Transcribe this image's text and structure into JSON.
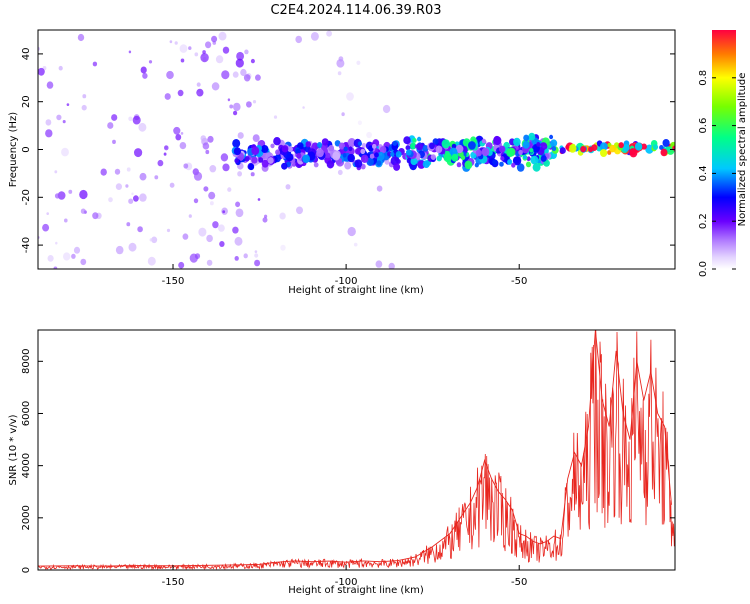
{
  "title": "C2E4.2024.114.06.39.R03",
  "chart_data": [
    {
      "type": "heatmap",
      "xlabel": "Height of straight line (km)",
      "ylabel": "Frequency (Hz)",
      "xlim": [
        -189,
        -5
      ],
      "ylim": [
        -50,
        50
      ],
      "x_ticks": [
        -150,
        -100,
        -50
      ],
      "y_ticks": [
        -40,
        -20,
        0,
        20,
        40
      ],
      "colorbar": {
        "label": "Normalized spectral amplitude",
        "range": [
          0,
          1
        ],
        "ticks": [
          0.0,
          0.2,
          0.4,
          0.6,
          0.8
        ],
        "colors": [
          "#ffffff",
          "#c9a7ff",
          "#7a00ff",
          "#0000ff",
          "#00ccff",
          "#00ff66",
          "#ffff00",
          "#ff6600",
          "#ff0033"
        ]
      },
      "features": [
        {
          "x_range": [
            -189,
            -123
          ],
          "f_range": [
            -50,
            50
          ],
          "amplitude": 0.15,
          "kind": "broadband noise"
        },
        {
          "x_range": [
            -123,
            -84
          ],
          "f_range": [
            -50,
            50
          ],
          "amplitude": 0.08,
          "kind": "sparse noise"
        },
        {
          "x_range": [
            -132,
            -84
          ],
          "f_range": [
            -8,
            4
          ],
          "amplitude": 0.3,
          "kind": "signal band"
        },
        {
          "x_range": [
            -83,
            -40
          ],
          "f_range": [
            -8,
            6
          ],
          "amplitude": 0.45,
          "kind": "signal band"
        },
        {
          "x_range": [
            -40,
            -5
          ],
          "f_range": [
            -2,
            3
          ],
          "amplitude": 0.9,
          "kind": "signal band"
        }
      ]
    },
    {
      "type": "line",
      "xlabel": "Height of straight line (km)",
      "ylabel": "SNR (10 * v/v)",
      "xlim": [
        -189,
        -5
      ],
      "ylim": [
        0,
        9200
      ],
      "x_ticks": [
        -150,
        -100,
        -50
      ],
      "y_ticks": [
        0,
        2000,
        4000,
        6000,
        8000
      ],
      "color": "#e8261f",
      "series": [
        {
          "x": [
            -189,
            -180,
            -170,
            -160,
            -150,
            -140,
            -130,
            -125,
            -120,
            -115,
            -110,
            -105,
            -100,
            -95,
            -90,
            -85,
            -80,
            -75,
            -70,
            -67,
            -64,
            -62,
            -60,
            -58,
            -56,
            -54,
            -52,
            -50,
            -48,
            -46,
            -44,
            -42,
            -40,
            -38,
            -36,
            -34,
            -32,
            -30,
            -28,
            -26,
            -24,
            -22,
            -20,
            -18,
            -16,
            -14,
            -12,
            -10,
            -8,
            -6
          ],
          "values": [
            150,
            160,
            150,
            170,
            160,
            180,
            200,
            220,
            300,
            350,
            320,
            340,
            300,
            350,
            320,
            360,
            500,
            900,
            1400,
            2000,
            2600,
            3200,
            4200,
            3500,
            3000,
            2700,
            2300,
            1400,
            1300,
            1100,
            1000,
            1100,
            1300,
            1200,
            3500,
            4500,
            4000,
            5500,
            9200,
            6500,
            5500,
            8400,
            6000,
            5000,
            8000,
            6500,
            7600,
            6000,
            5500,
            2500
          ]
        }
      ]
    }
  ]
}
